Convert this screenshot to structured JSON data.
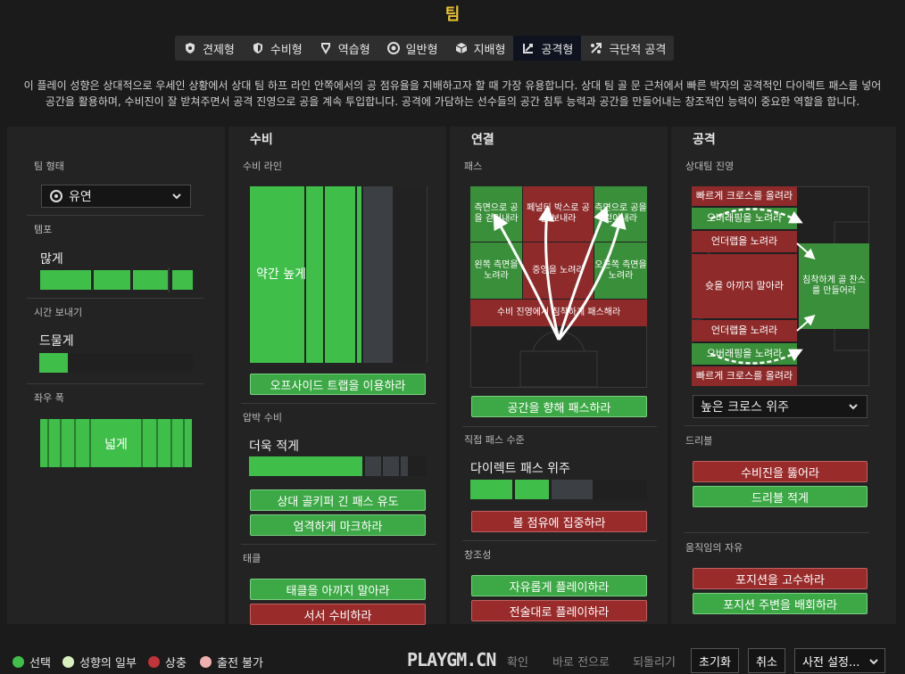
{
  "header": {
    "title": "팀"
  },
  "tabs": [
    {
      "label": "견제형",
      "icon": "shield-wing-icon"
    },
    {
      "label": "수비형",
      "icon": "shield-icon"
    },
    {
      "label": "역습형",
      "icon": "counter-icon"
    },
    {
      "label": "일반형",
      "icon": "balance-icon"
    },
    {
      "label": "지배형",
      "icon": "cube-icon"
    },
    {
      "label": "공격형",
      "icon": "attack-icon",
      "active": true
    },
    {
      "label": "극단적 공격",
      "icon": "extreme-attack-icon"
    }
  ],
  "description": {
    "line1": "이 플레이 성향은 상대적으로 우세인 상황에서 상대 팀 하프 라인 안쪽에서의 공 점유율을 지배하고자 할 때 가장 유용합니다. 상대 팀 골 문 근처에서 빠른 박자의 공격적인 다이렉트 패스를 넣어",
    "line2": "공간을 활용하며, 수비진이 잘 받쳐주면서 공격 진영으로 공을 계속 투입합니다. 공격에 가담하는 선수들의 공간 침투 능력과 공간을 만들어내는 창조적인 능력이 중요한 역할을 합니다."
  },
  "team_column": {
    "team_shape_label": "팀 형태",
    "team_shape_value": "유연",
    "tempo_label": "템포",
    "tempo_value": "많게",
    "time_wasting_label": "시간 보내기",
    "time_wasting_value": "드물게",
    "width_label": "좌우 폭",
    "width_value": "넓게"
  },
  "defense": {
    "heading": "수비",
    "line_label": "수비 라인",
    "line_value": "약간 높게",
    "offside_btn": "오프사이드 트랩을 이용하라",
    "press_label": "압박 수비",
    "press_value": "더욱 적게",
    "press_btn1": "상대 골키퍼 긴 패스 유도",
    "press_btn2": "엄격하게 마크하라",
    "tackle_label": "태클",
    "tackle_btn1": "태클을 아끼지 말아라",
    "tackle_btn2": "서서 수비하라"
  },
  "link": {
    "heading": "연결",
    "pass_label": "패스",
    "pitch": {
      "left_wide": "측면으로 공을 걷어내라",
      "penalty_box": "페널티 박스로 공을 보내라",
      "right_wide": "측면으로 공을 걷어내라",
      "left_flank": "왼쪽 측면을 노려라",
      "center": "중앙을 노려라",
      "right_flank": "오른쪽 측면을 노려라",
      "pass_into_space": "수비 진영에서 침착하게 패스해라"
    },
    "pass_space_btn": "공간을 향해 패스하라",
    "directness_label": "직접 패스 수준",
    "directness_value": "다이렉트 패스 위주",
    "possession_btn": "볼 점유에 집중하라",
    "creativity_label": "창조성",
    "creativity_btn1": "자유롭게 플레이하라",
    "creativity_btn2": "전술대로 플레이하라"
  },
  "attack": {
    "heading": "공격",
    "progress_label": "상대팀 진영",
    "pitch": {
      "cross_top": "빠르게 크로스를 올려라",
      "overlap_top": "오버래핑을 노려라",
      "underlap_top": "언더랩을 노려라",
      "shoot": "슛을 아끼지 말아라",
      "patient": "침착하게 골 찬스를 만들어라",
      "underlap_bottom": "언더랩을 노려라",
      "overlap_bottom": "오버래핑을 노려라",
      "cross_bottom": "빠르게 크로스를 올려라"
    },
    "cross_dd": "높은 크로스 위주",
    "dribble_label": "드리블",
    "dribble_btn1": "수비진을 뚫어라",
    "dribble_btn2": "드리블 적게",
    "freedom_label": "움직임의 자유",
    "freedom_btn1": "포지션을 고수하라",
    "freedom_btn2": "포지션 주변을 배회하라"
  },
  "legend": [
    {
      "label": "선택",
      "color": "#3fbf4a"
    },
    {
      "label": "성향의 일부",
      "color": "#d8f0c0"
    },
    {
      "label": "상충",
      "color": "#c0343a"
    },
    {
      "label": "출전 불가",
      "color": "#f0b0b0"
    }
  ],
  "footer": {
    "watermark": "PLAYGM.CN",
    "confirm": "확인",
    "revert": "바로 전으로",
    "undo": "되돌리기",
    "reset": "초기화",
    "cancel": "취소",
    "presets": "사전 설정..."
  },
  "colors": {
    "green": "#3fbf4a",
    "red": "#8e2a2a",
    "accent": "#e9c232"
  }
}
